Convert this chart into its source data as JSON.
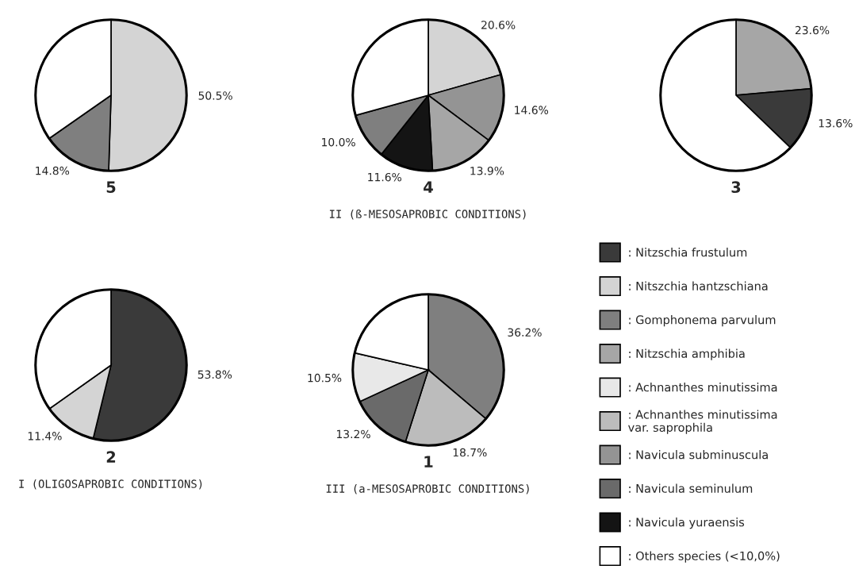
{
  "chart_data": [
    {
      "type": "pie",
      "title": "5",
      "categories": [
        null,
        null,
        null
      ],
      "values": [
        50.5,
        14.8,
        34.7
      ],
      "colors": [
        "#d4d4d4",
        "#7f7f7f",
        "#ffffff"
      ],
      "value_labels": [
        "50.5%",
        "14.8%",
        null
      ]
    },
    {
      "type": "pie",
      "title": "4",
      "categories": [
        null,
        null,
        null,
        null,
        null,
        null
      ],
      "values": [
        20.6,
        14.6,
        13.9,
        11.6,
        10.0,
        29.3
      ],
      "colors": [
        "#d4d4d4",
        "#949494",
        "#a6a6a6",
        "#141414",
        "#7f7f7f",
        "#ffffff"
      ],
      "value_labels": [
        "20.6%",
        "14.6%",
        "13.9%",
        "11.6%",
        "10.0%",
        null
      ],
      "annotations": [
        "II (ß-MESOSAPROBIC CONDITIONS)"
      ]
    },
    {
      "type": "pie",
      "title": "3",
      "categories": [
        null,
        null,
        null
      ],
      "values": [
        23.6,
        13.6,
        62.8
      ],
      "colors": [
        "#a6a6a6",
        "#3a3a3a",
        "#ffffff"
      ],
      "value_labels": [
        "23.6%",
        "13.6%",
        null
      ]
    },
    {
      "type": "pie",
      "title": "2",
      "categories": [
        null,
        null,
        null
      ],
      "values": [
        53.8,
        11.4,
        34.8
      ],
      "colors": [
        "#3a3a3a",
        "#d4d4d4",
        "#ffffff"
      ],
      "value_labels": [
        "53.8%",
        "11.4%",
        null
      ],
      "annotations": [
        "I (OLIGOSAPROBIC CONDITIONS)"
      ]
    },
    {
      "type": "pie",
      "title": "1",
      "categories": [
        null,
        null,
        null,
        null,
        null
      ],
      "values": [
        36.2,
        18.7,
        13.2,
        10.5,
        21.4
      ],
      "colors": [
        "#7f7f7f",
        "#bcbcbc",
        "#6a6a6a",
        "#e8e8e8",
        "#ffffff"
      ],
      "value_labels": [
        "36.2%",
        "18.7%",
        "13.2%",
        "10.5%",
        null
      ],
      "annotations": [
        "III (a-MESOSAPROBIC CONDITIONS)"
      ]
    },
    {
      "type": "other",
      "categories": [
        ": Nitzschia frustulum",
        ": Nitszchia hantzschiana",
        ": Gomphonema parvulum",
        ": Nitzschia amphibia",
        ": Achnanthes minutissima",
        ": Achnanthes minutissima\nvar. saprophila",
        ": Navicula subminuscula",
        ": Navicula seminulum",
        ": Navicula yuraensis",
        ": Others species (<10,0%)"
      ],
      "colors": [
        "#3a3a3a",
        "#d4d4d4",
        "#7f7f7f",
        "#a6a6a6",
        "#e8e8e8",
        "#bcbcbc",
        "#949494",
        "#6a6a6a",
        "#141414",
        "#ffffff"
      ]
    }
  ]
}
